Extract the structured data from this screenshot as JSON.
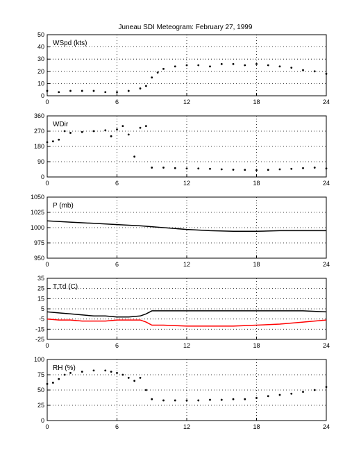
{
  "figure": {
    "title": "Juneau SDI Meteogram:  February 27, 1999"
  },
  "chart_data": [
    {
      "type": "scatter",
      "label": "WSpd (kts)",
      "xlim": [
        0,
        24
      ],
      "ylim": [
        0,
        50
      ],
      "xticks": [
        0,
        6,
        12,
        18,
        24
      ],
      "yticks": [
        0,
        10,
        20,
        30,
        40,
        50
      ],
      "grid": true,
      "series": [
        {
          "color": "#000000",
          "x": [
            0,
            1,
            2,
            3,
            4,
            5,
            6,
            7,
            8,
            8.5,
            9,
            9.5,
            10,
            11,
            12,
            13,
            14,
            15,
            16,
            17,
            18,
            19,
            20,
            21,
            22,
            23,
            24
          ],
          "y": [
            4,
            3,
            4,
            4,
            4,
            3,
            3,
            4,
            6,
            8,
            15,
            19,
            22,
            24,
            25,
            25,
            24,
            26,
            26,
            25,
            26,
            25,
            24,
            23,
            21,
            20,
            18
          ]
        }
      ]
    },
    {
      "type": "scatter",
      "label": "WDir",
      "xlim": [
        0,
        24
      ],
      "ylim": [
        0,
        360
      ],
      "xticks": [
        0,
        6,
        12,
        18,
        24
      ],
      "yticks": [
        0,
        90,
        180,
        270,
        360
      ],
      "grid": true,
      "series": [
        {
          "color": "#000000",
          "x": [
            0,
            0.5,
            1,
            1.5,
            2,
            3,
            4,
            5,
            5.5,
            6,
            6.5,
            7,
            7.5,
            8,
            8.5,
            9,
            10,
            11,
            12,
            13,
            14,
            15,
            16,
            17,
            18,
            19,
            20,
            21,
            22,
            23,
            24
          ],
          "y": [
            205,
            210,
            220,
            270,
            260,
            265,
            270,
            275,
            240,
            280,
            300,
            250,
            120,
            290,
            300,
            55,
            55,
            52,
            50,
            50,
            48,
            45,
            43,
            42,
            40,
            42,
            45,
            48,
            52,
            55,
            50
          ]
        }
      ]
    },
    {
      "type": "line",
      "label": "P (mb)",
      "xlim": [
        0,
        24
      ],
      "ylim": [
        950,
        1050
      ],
      "xticks": [
        0,
        6,
        12,
        18,
        24
      ],
      "yticks": [
        950,
        975,
        1000,
        1025,
        1050
      ],
      "grid": true,
      "series": [
        {
          "color": "#000000",
          "x": [
            0,
            2,
            4,
            6,
            8,
            10,
            12,
            14,
            16,
            18,
            20,
            22,
            24
          ],
          "y": [
            1011,
            1009,
            1007,
            1005,
            1003,
            1000,
            997,
            995,
            994,
            994,
            995,
            995,
            995
          ]
        }
      ]
    },
    {
      "type": "line",
      "label": "T,Td (C)",
      "xlim": [
        0,
        24
      ],
      "ylim": [
        -25,
        35
      ],
      "xticks": [
        0,
        6,
        12,
        18,
        24
      ],
      "yticks": [
        -25,
        -15,
        -5,
        5,
        15,
        25,
        35
      ],
      "grid": true,
      "series": [
        {
          "color": "#000000",
          "x": [
            0,
            1,
            2,
            3,
            4,
            5,
            6,
            7,
            8,
            8.5,
            9,
            10,
            12,
            14,
            16,
            18,
            20,
            22,
            24
          ],
          "y": [
            2,
            1,
            0,
            -1,
            -2,
            -2,
            -3,
            -3,
            -2,
            0,
            3,
            3,
            3,
            3,
            3,
            3,
            3,
            3,
            2
          ]
        },
        {
          "color": "#ff0000",
          "x": [
            0,
            1,
            2,
            3,
            4,
            5,
            6,
            7,
            8,
            8.5,
            9,
            10,
            12,
            14,
            16,
            18,
            20,
            22,
            24
          ],
          "y": [
            -5,
            -6,
            -6,
            -7,
            -7,
            -7,
            -6,
            -6,
            -6,
            -8,
            -11,
            -11,
            -12,
            -12,
            -12,
            -11,
            -10,
            -8,
            -6
          ]
        }
      ]
    },
    {
      "type": "scatter",
      "label": "RH (%)",
      "xlim": [
        0,
        24
      ],
      "ylim": [
        0,
        100
      ],
      "xticks": [
        0,
        6,
        12,
        18,
        24
      ],
      "yticks": [
        0,
        25,
        50,
        75,
        100
      ],
      "grid": true,
      "series": [
        {
          "color": "#000000",
          "x": [
            0,
            0.5,
            1,
            1.5,
            2,
            3,
            4,
            5,
            5.5,
            6,
            6.5,
            7,
            7.5,
            8,
            8.5,
            9,
            10,
            11,
            12,
            13,
            14,
            15,
            16,
            17,
            18,
            19,
            20,
            21,
            22,
            23,
            24
          ],
          "y": [
            60,
            62,
            68,
            75,
            78,
            80,
            82,
            82,
            80,
            78,
            75,
            70,
            65,
            70,
            50,
            35,
            33,
            33,
            33,
            33,
            34,
            34,
            35,
            35,
            37,
            40,
            42,
            44,
            47,
            50,
            55
          ]
        }
      ]
    }
  ]
}
